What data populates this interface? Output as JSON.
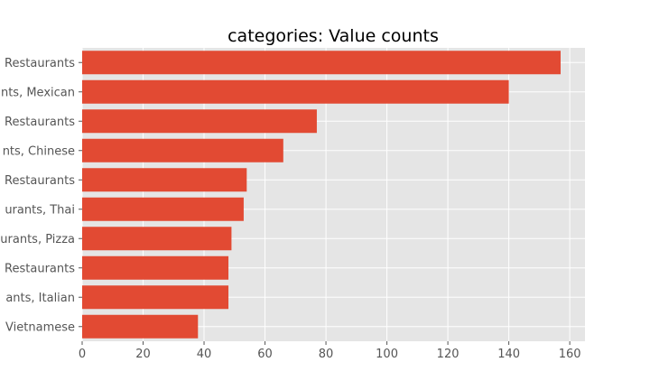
{
  "chart_data": {
    "type": "bar",
    "orientation": "horizontal",
    "title": "categories: Value counts",
    "xlabel": "",
    "ylabel": "",
    "categories": [
      "Restaurants",
      "nts, Mexican",
      "Restaurants",
      "nts, Chinese",
      "Restaurants",
      "urants, Thai",
      "urants, Pizza",
      "Restaurants",
      "ants, Italian",
      "Vietnamese"
    ],
    "values": [
      157,
      140,
      77,
      66,
      54,
      53,
      49,
      48,
      48,
      38
    ],
    "xlim": [
      0,
      165
    ],
    "xticks": [
      0,
      20,
      40,
      60,
      80,
      100,
      120,
      140,
      160
    ],
    "grid": true,
    "legend": "none",
    "colors": {
      "bar": "#e24a33",
      "plot_background": "#e5e5e5",
      "grid": "#ffffff",
      "tick_text": "#555555"
    }
  }
}
